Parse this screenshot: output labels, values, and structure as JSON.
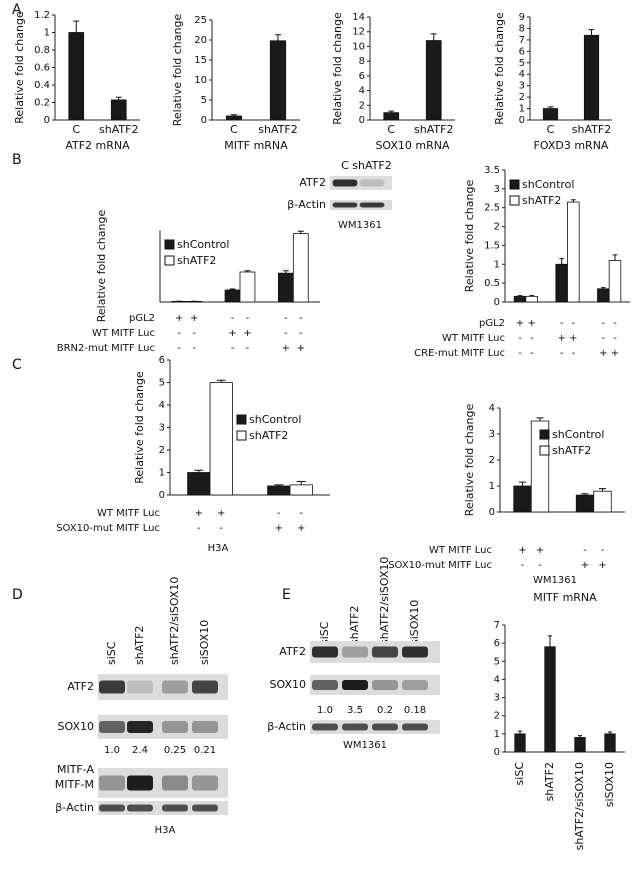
{
  "panel_labels": [
    "A",
    "B",
    "C",
    "D",
    "E"
  ],
  "chart_data": [
    {
      "type": "bar",
      "categories": [
        "C",
        "shATF2"
      ],
      "values": [
        1,
        0.23
      ],
      "errors": [
        0.13,
        0.03
      ],
      "color": "#1a1a1a",
      "ylabel": "Relative fold change",
      "xlabel": "ATF2 mRNA",
      "ylim": [
        0,
        1.2
      ],
      "yticks": [
        0,
        0.2,
        0.4,
        0.6,
        0.8,
        1,
        1.2
      ]
    },
    {
      "type": "bar",
      "categories": [
        "C",
        "shATF2"
      ],
      "values": [
        1,
        19.8
      ],
      "errors": [
        0.3,
        1.5
      ],
      "color": "#1a1a1a",
      "ylabel": "Relative fold change",
      "xlabel": "MITF  mRNA",
      "ylim": [
        0,
        25
      ],
      "yticks": [
        0,
        5,
        10,
        15,
        20,
        25
      ]
    },
    {
      "type": "bar",
      "categories": [
        "C",
        "shATF2"
      ],
      "values": [
        1,
        10.8
      ],
      "errors": [
        0.2,
        0.9
      ],
      "color": "#1a1a1a",
      "ylabel": "Relative fold change",
      "xlabel": "SOX10  mRNA",
      "ylim": [
        0,
        14
      ],
      "yticks": [
        0,
        2,
        4,
        6,
        8,
        10,
        12,
        14
      ]
    },
    {
      "type": "bar",
      "categories": [
        "C",
        "shATF2"
      ],
      "values": [
        1,
        7.4
      ],
      "errors": [
        0.15,
        0.5
      ],
      "color": "#1a1a1a",
      "ylabel": "Relative fold change",
      "xlabel": "FOXD3  mRNA",
      "ylim": [
        0,
        9
      ],
      "yticks": [
        0,
        1,
        2,
        3,
        4,
        5,
        6,
        7,
        8,
        9
      ]
    },
    {
      "type": "bar",
      "categories": [
        null,
        null,
        null
      ],
      "ylabel": "Relative fold change",
      "ylim": [
        0,
        6
      ],
      "series": [
        {
          "name": "shControl",
          "color": "#1a1a1a",
          "values": [
            0.05,
            1,
            2.4
          ],
          "errors": [
            0.01,
            0.08,
            0.2
          ]
        },
        {
          "name": "shATF2",
          "color": "#ffffff",
          "values": [
            0.05,
            2.5,
            5.7
          ],
          "errors": [
            0.01,
            0.1,
            0.2
          ]
        }
      ],
      "conditions": [
        {
          "label": "pGL2",
          "signs": [
            "+",
            "+",
            "-",
            "-",
            "-",
            "-"
          ]
        },
        {
          "label": "WT MITF Luc",
          "signs": [
            "-",
            "-",
            "+",
            "+",
            "-",
            "-"
          ]
        },
        {
          "label": "BRN2-mut MITF Luc",
          "signs": [
            "-",
            "-",
            "-",
            "-",
            "+",
            "+"
          ]
        }
      ]
    },
    {
      "type": "bar",
      "categories": [
        null,
        null,
        null
      ],
      "ylabel": "Relative fold change",
      "ylim": [
        0,
        3.5
      ],
      "yticks": [
        0,
        0.5,
        1,
        1.5,
        2,
        2.5,
        3,
        3.5
      ],
      "series": [
        {
          "name": "shControl",
          "color": "#1a1a1a",
          "values": [
            0.15,
            1,
            0.35
          ],
          "errors": [
            0.02,
            0.15,
            0.03
          ]
        },
        {
          "name": "shATF2",
          "color": "#ffffff",
          "values": [
            0.15,
            2.65,
            1.1
          ],
          "errors": [
            0.02,
            0.06,
            0.15
          ]
        }
      ],
      "conditions": [
        {
          "label": "pGL2",
          "signs": [
            "+",
            "+",
            "-",
            "-",
            "-",
            "-"
          ]
        },
        {
          "label": "WT MITF Luc",
          "signs": [
            "-",
            "-",
            "+",
            "+",
            "-",
            "-"
          ]
        },
        {
          "label": "CRE-mut MITF Luc",
          "signs": [
            "-",
            "-",
            "-",
            "-",
            "+",
            "+"
          ]
        }
      ]
    },
    {
      "type": "bar",
      "categories": [
        null,
        null
      ],
      "ylabel": "Relative fold change",
      "xlabel": "H3A",
      "ylim": [
        0,
        6
      ],
      "yticks": [
        0,
        1,
        2,
        3,
        4,
        5,
        6
      ],
      "series": [
        {
          "name": "shControl",
          "color": "#1a1a1a",
          "values": [
            1,
            0.4
          ],
          "errors": [
            0.1,
            0.05
          ]
        },
        {
          "name": "shATF2",
          "color": "#ffffff",
          "values": [
            5,
            0.45
          ],
          "errors": [
            0.1,
            0.15
          ]
        }
      ],
      "conditions": [
        {
          "label": "WT MITF Luc",
          "signs": [
            "+",
            "+",
            "-",
            "-"
          ]
        },
        {
          "label": "SOX10-mut MITF Luc",
          "signs": [
            "-",
            "-",
            "+",
            "+"
          ]
        }
      ]
    },
    {
      "type": "bar",
      "categories": [
        null,
        null
      ],
      "ylabel": "Relative fold change",
      "xlabel": "WM1361",
      "ylim": [
        0,
        4
      ],
      "yticks": [
        0,
        1,
        2,
        3,
        4
      ],
      "series": [
        {
          "name": "shControl",
          "color": "#1a1a1a",
          "values": [
            1,
            0.65
          ],
          "errors": [
            0.15,
            0.05
          ]
        },
        {
          "name": "shATF2",
          "color": "#ffffff",
          "values": [
            3.5,
            0.8
          ],
          "errors": [
            0.12,
            0.1
          ]
        }
      ],
      "conditions": [
        {
          "label": "WT MITF Luc",
          "signs": [
            "+",
            "+",
            "-",
            "-"
          ]
        },
        {
          "label": "SOX10-mut MITF Luc",
          "signs": [
            "-",
            "-",
            "+",
            "+"
          ]
        }
      ]
    },
    {
      "type": "bar",
      "title": "MITF mRNA",
      "categories": [
        "siSC",
        "shATF2",
        "shATF2/siSOX10",
        "siSOX10"
      ],
      "values": [
        1,
        5.8,
        0.8,
        1
      ],
      "errors": [
        0.15,
        0.6,
        0.1,
        0.1
      ],
      "color": "#1a1a1a",
      "ylim": [
        0,
        7
      ],
      "yticks": [
        0,
        1,
        2,
        3,
        4,
        5,
        6,
        7
      ]
    }
  ],
  "blots": [
    {
      "lanes": [
        "C",
        "shATF2"
      ],
      "rows": [
        "ATF2",
        "β-Actin"
      ],
      "cell_line": "WM1361"
    },
    {
      "lanes": [
        "siSC",
        "shATF2",
        "shATF2/siSOX10",
        "siSOX10"
      ],
      "rows": [
        "ATF2",
        "SOX10",
        "MITF-A",
        "MITF-M",
        "β-Actin"
      ],
      "quant": [
        "1.0",
        "2.4",
        "0.25",
        "0.21"
      ],
      "cell_line": "H3A"
    },
    {
      "lanes": [
        "siSC",
        "shATF2",
        "shATF2/siSOX10",
        "siSOX10"
      ],
      "rows": [
        "ATF2",
        "SOX10",
        "β-Actin"
      ],
      "quant": [
        "1.0",
        "3.5",
        "0.2",
        "0.18"
      ],
      "cell_line": "WM1361"
    }
  ]
}
